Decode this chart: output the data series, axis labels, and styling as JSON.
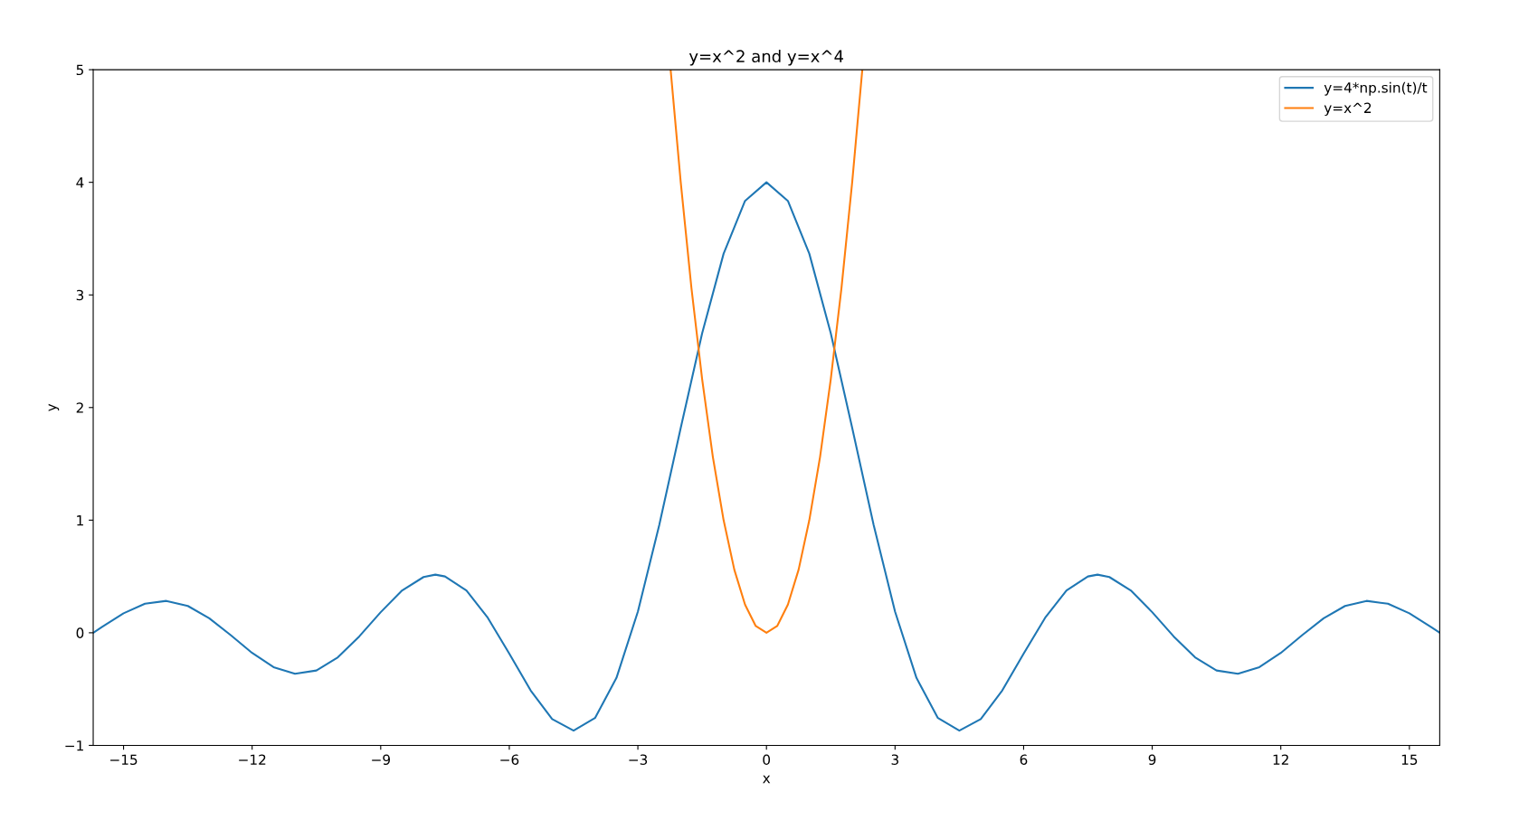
{
  "chart_data": {
    "type": "line",
    "title": "y=x^2 and y=x^4",
    "xlabel": "x",
    "ylabel": "y",
    "series": [
      {
        "name": "y=4*np.sin(t)/t",
        "color": "#1f77b4",
        "x": [
          -15.708,
          -15.5,
          -15,
          -14.5,
          -14,
          -13.5,
          -13,
          -12.5,
          -12,
          -11.5,
          -11,
          -10.5,
          -10,
          -9.5,
          -9,
          -8.5,
          -8,
          -7.725,
          -7.5,
          -7,
          -6.5,
          -6,
          -5.5,
          -5,
          -4.5,
          -4,
          -3.5,
          -3,
          -2.5,
          -2,
          -1.5,
          -1,
          -0.5,
          0,
          0.5,
          1,
          1.5,
          2,
          2.5,
          3,
          3.5,
          4,
          4.5,
          5,
          5.5,
          6,
          6.5,
          7,
          7.5,
          7.725,
          8,
          8.5,
          9,
          9.5,
          10,
          10.5,
          11,
          11.5,
          12,
          12.5,
          13,
          13.5,
          14,
          14.5,
          15,
          15.5,
          15.708
        ],
        "values": [
          0,
          0.053,
          0.173,
          0.258,
          0.283,
          0.238,
          0.129,
          -0.021,
          -0.179,
          -0.305,
          -0.364,
          -0.335,
          -0.218,
          -0.032,
          0.183,
          0.376,
          0.495,
          0.516,
          0.5,
          0.375,
          0.132,
          -0.186,
          -0.513,
          -0.767,
          -0.869,
          -0.757,
          -0.401,
          0.188,
          0.958,
          1.819,
          2.66,
          3.366,
          3.835,
          4,
          3.835,
          3.366,
          2.66,
          1.819,
          0.958,
          0.188,
          -0.401,
          -0.757,
          -0.869,
          -0.767,
          -0.513,
          -0.186,
          0.132,
          0.375,
          0.5,
          0.516,
          0.495,
          0.376,
          0.183,
          -0.032,
          -0.218,
          -0.335,
          -0.364,
          -0.305,
          -0.179,
          -0.021,
          0.129,
          0.238,
          0.283,
          0.258,
          0.173,
          0.053,
          0
        ]
      },
      {
        "name": "y=x^2",
        "color": "#ff7f0e",
        "x": [
          -2.236,
          -2,
          -1.75,
          -1.5,
          -1.25,
          -1,
          -0.75,
          -0.5,
          -0.25,
          0,
          0.25,
          0.5,
          0.75,
          1,
          1.25,
          1.5,
          1.75,
          2,
          2.236
        ],
        "values": [
          5,
          4,
          3.06,
          2.25,
          1.56,
          1,
          0.56,
          0.25,
          0.06,
          0,
          0.06,
          0.25,
          0.56,
          1,
          1.56,
          2.25,
          3.06,
          4,
          5
        ]
      }
    ],
    "xlim": [
      -15.708,
      15.708
    ],
    "xticks": [
      {
        "value": -15,
        "label": "−15"
      },
      {
        "value": -12,
        "label": "−12"
      },
      {
        "value": -9,
        "label": "−9"
      },
      {
        "value": -6,
        "label": "−6"
      },
      {
        "value": -3,
        "label": "−3"
      },
      0,
      3,
      6,
      9,
      12,
      15
    ],
    "ylim": [
      -1,
      5
    ],
    "yticks": [
      {
        "value": -1,
        "label": "−1"
      },
      0,
      1,
      2,
      3,
      4,
      5
    ],
    "legend": "top right",
    "grid": false
  }
}
